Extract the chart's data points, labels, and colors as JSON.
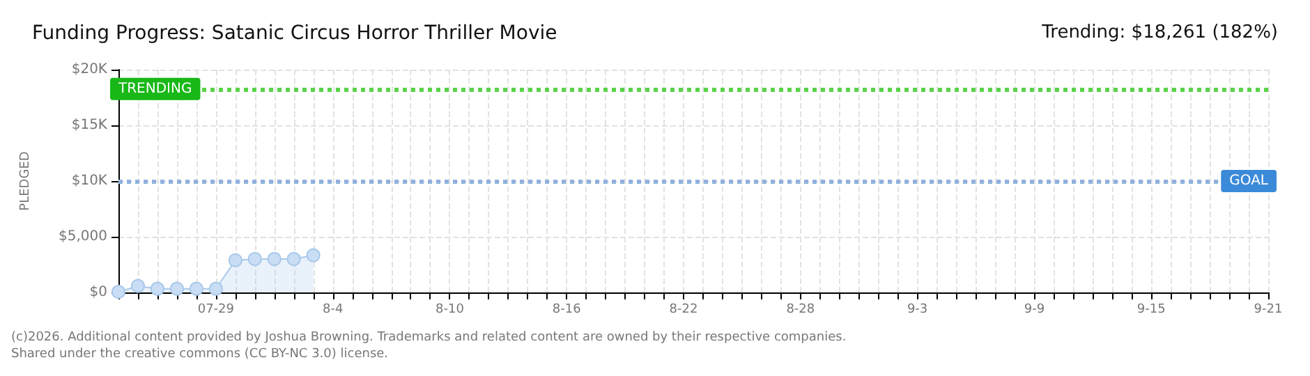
{
  "chart_data": {
    "type": "area",
    "title": "Funding Progress: Satanic Circus Horror Thriller Movie",
    "subtitle": "Trending: $18,261 (182%)",
    "ylabel": "PLEDGED",
    "annotations": [
      "(c)2026. Additional content provided by Joshua Browning. Trademarks and related content are owned by their respective companies.",
      "Shared under the creative commons (CC BY-NC 3.0) license."
    ],
    "x": [
      "--07-24",
      "--07-25",
      "--07-26",
      "--07-27",
      "--07-28",
      "--07-29",
      "--07-30",
      "--07-31",
      "--08-01",
      "--08-02",
      "--08-03"
    ],
    "series": [
      {
        "color": "#a9c8ea",
        "values": [
          50,
          580,
          330,
          330,
          330,
          330,
          2880,
          3000,
          3000,
          3000,
          3330
        ]
      }
    ],
    "xlim": [
      "--07-24",
      "--09-21"
    ],
    "xticks": [
      {
        "value": "--07-24",
        "label": null
      },
      {
        "value": "--07-25",
        "label": null
      },
      {
        "value": "--07-26",
        "label": null
      },
      {
        "value": "--07-27",
        "label": null
      },
      {
        "value": "--07-28",
        "label": null
      },
      {
        "value": "--07-29",
        "label": "07-29"
      },
      {
        "value": "--07-30",
        "label": null
      },
      {
        "value": "--07-31",
        "label": null
      },
      {
        "value": "--08-01",
        "label": null
      },
      {
        "value": "--08-02",
        "label": null
      },
      {
        "value": "--08-03",
        "label": null
      },
      {
        "value": "--08-04",
        "label": "8-4"
      },
      {
        "value": "--08-05",
        "label": null
      },
      {
        "value": "--08-06",
        "label": null
      },
      {
        "value": "--08-07",
        "label": null
      },
      {
        "value": "--08-08",
        "label": null
      },
      {
        "value": "--08-09",
        "label": null
      },
      {
        "value": "--08-10",
        "label": "8-10"
      },
      {
        "value": "--08-11",
        "label": null
      },
      {
        "value": "--08-12",
        "label": null
      },
      {
        "value": "--08-13",
        "label": null
      },
      {
        "value": "--08-14",
        "label": null
      },
      {
        "value": "--08-15",
        "label": null
      },
      {
        "value": "--08-16",
        "label": "8-16"
      },
      {
        "value": "--08-17",
        "label": null
      },
      {
        "value": "--08-18",
        "label": null
      },
      {
        "value": "--08-19",
        "label": null
      },
      {
        "value": "--08-20",
        "label": null
      },
      {
        "value": "--08-21",
        "label": null
      },
      {
        "value": "--08-22",
        "label": "8-22"
      },
      {
        "value": "--08-23",
        "label": null
      },
      {
        "value": "--08-24",
        "label": null
      },
      {
        "value": "--08-25",
        "label": null
      },
      {
        "value": "--08-26",
        "label": null
      },
      {
        "value": "--08-27",
        "label": null
      },
      {
        "value": "--08-28",
        "label": "8-28"
      },
      {
        "value": "--08-29",
        "label": null
      },
      {
        "value": "--08-30",
        "label": null
      },
      {
        "value": "--08-31",
        "label": null
      },
      {
        "value": "--09-01",
        "label": null
      },
      {
        "value": "--09-02",
        "label": null
      },
      {
        "value": "--09-03",
        "label": "9-3"
      },
      {
        "value": "--09-04",
        "label": null
      },
      {
        "value": "--09-05",
        "label": null
      },
      {
        "value": "--09-06",
        "label": null
      },
      {
        "value": "--09-07",
        "label": null
      },
      {
        "value": "--09-08",
        "label": null
      },
      {
        "value": "--09-09",
        "label": "9-9"
      },
      {
        "value": "--09-10",
        "label": null
      },
      {
        "value": "--09-11",
        "label": null
      },
      {
        "value": "--09-12",
        "label": null
      },
      {
        "value": "--09-13",
        "label": null
      },
      {
        "value": "--09-14",
        "label": null
      },
      {
        "value": "--09-15",
        "label": "9-15"
      },
      {
        "value": "--09-16",
        "label": null
      },
      {
        "value": "--09-17",
        "label": null
      },
      {
        "value": "--09-18",
        "label": null
      },
      {
        "value": "--09-19",
        "label": null
      },
      {
        "value": "--09-20",
        "label": null
      },
      {
        "value": "--09-21",
        "label": "9-21"
      }
    ],
    "ylim": [
      0,
      20000
    ],
    "yticks": [
      {
        "value": 0,
        "label": "$0"
      },
      {
        "value": 5000,
        "label": "$5,000"
      },
      {
        "value": 10000,
        "label": "$10K"
      },
      {
        "value": 15000,
        "label": "$15K"
      },
      {
        "value": 20000,
        "label": "$20K"
      }
    ],
    "ref_lines": [
      {
        "axis": "y",
        "value": 18261,
        "label": "TRENDING",
        "color": "#5ad24a",
        "line_style": "dotted"
      },
      {
        "axis": "y",
        "value": 10000,
        "label": "GOAL",
        "color": "#8fb2dc",
        "line_style": "dotted"
      }
    ],
    "grid": true,
    "marker": "circle",
    "line_style": "solid"
  }
}
